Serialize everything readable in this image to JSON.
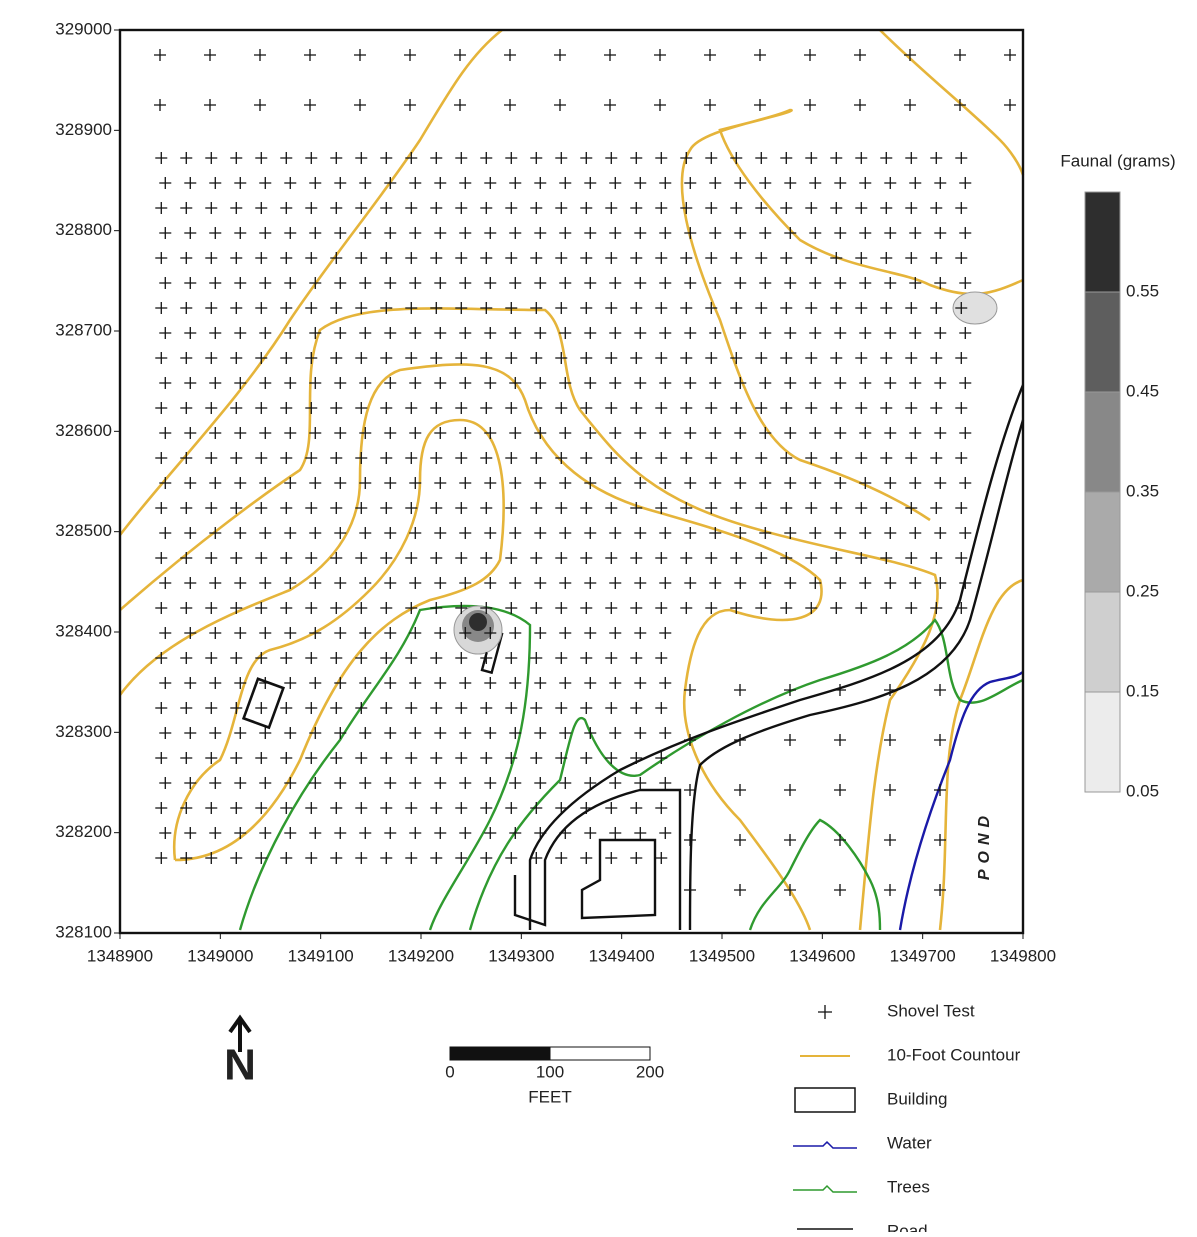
{
  "map": {
    "xlim": [
      1348900,
      1349800
    ],
    "ylim": [
      328100,
      329000
    ],
    "xticks": [
      1348900,
      1349000,
      1349100,
      1349200,
      1349300,
      1349400,
      1349500,
      1349600,
      1349700,
      1349800
    ],
    "yticks": [
      328100,
      328200,
      328300,
      328400,
      328500,
      328600,
      328700,
      328800,
      328900,
      329000
    ],
    "colorbar": {
      "title": "Faunal (grams)",
      "levels": [
        0.05,
        0.15,
        0.25,
        0.35,
        0.45,
        0.55
      ],
      "colors": [
        "#ececec",
        "#cfcfcf",
        "#aaaaaa",
        "#888888",
        "#5e5e5e",
        "#2e2e2e"
      ]
    },
    "pond_label": "POND",
    "north_label": "N",
    "scale_bar": {
      "ticks": [
        0,
        100,
        200
      ],
      "unit": "FEET"
    },
    "legend": [
      "Shovel Test",
      "10-Foot Countour",
      "Building",
      "Water",
      "Trees",
      "Road"
    ]
  }
}
